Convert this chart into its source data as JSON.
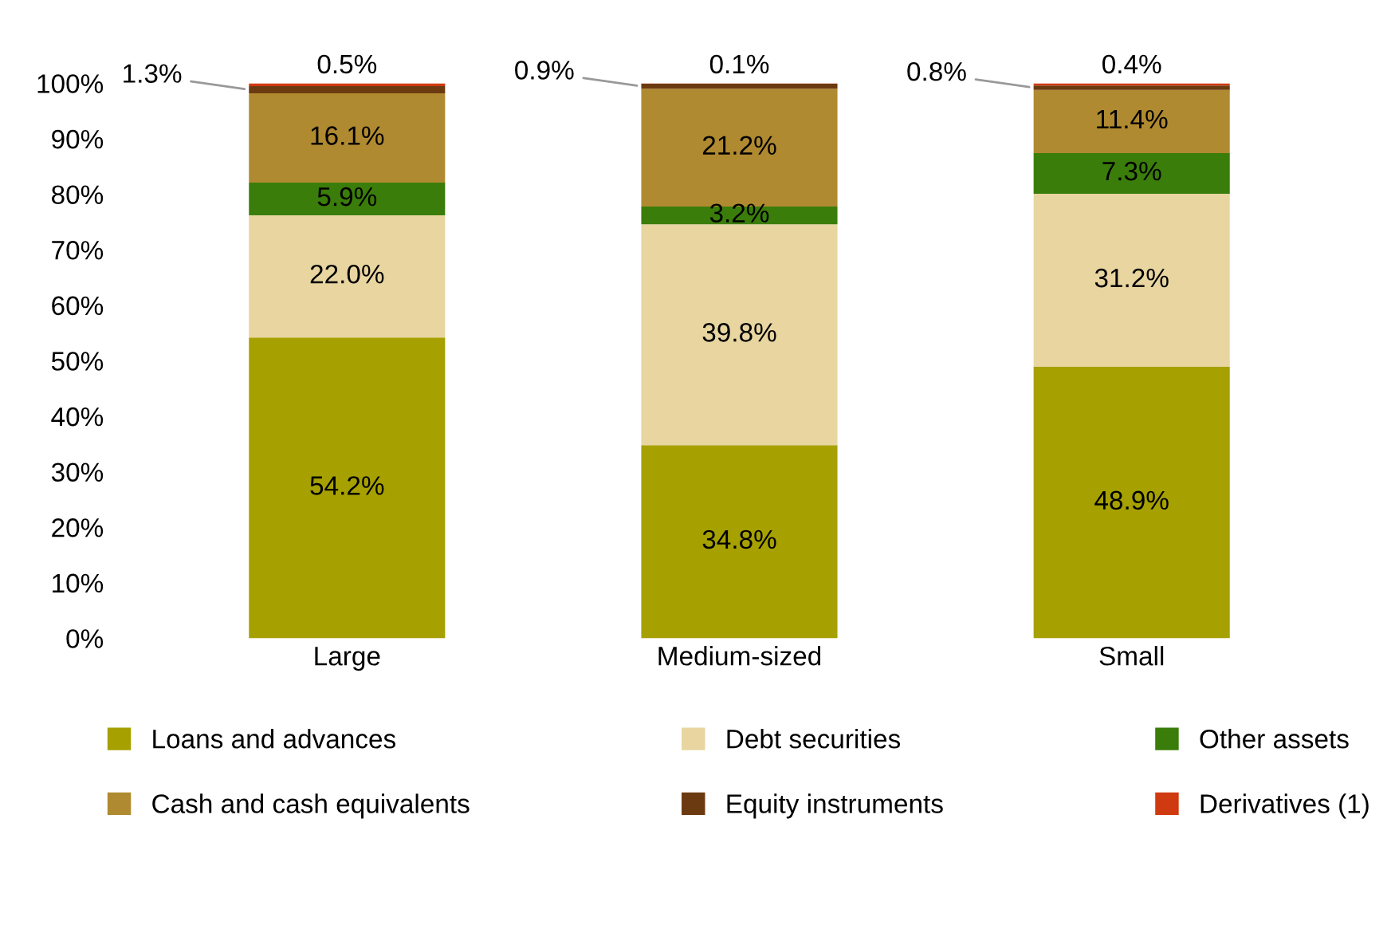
{
  "chart_data": {
    "type": "bar",
    "stacked": true,
    "categories": [
      "Large",
      "Medium-sized",
      "Small"
    ],
    "series": [
      {
        "name": "Loans and advances",
        "color": "#a6a000",
        "values": [
          54.2,
          34.8,
          48.9
        ],
        "value_labels": [
          "54.2%",
          "34.8%",
          "48.9%"
        ]
      },
      {
        "name": "Debt securities",
        "color": "#e8d5a0",
        "values": [
          22.0,
          39.8,
          31.2
        ],
        "value_labels": [
          "22.0%",
          "39.8%",
          "31.2%"
        ]
      },
      {
        "name": "Other assets",
        "color": "#3a7d0a",
        "values": [
          5.9,
          3.2,
          7.3
        ],
        "value_labels": [
          "5.9%",
          "3.2%",
          "7.3%"
        ]
      },
      {
        "name": "Cash and cash equivalents",
        "color": "#b08a30",
        "values": [
          16.1,
          21.2,
          11.4
        ],
        "value_labels": [
          "16.1%",
          "21.2%",
          "11.4%"
        ]
      },
      {
        "name": "Equity instruments",
        "color": "#6b3a10",
        "values": [
          1.3,
          0.9,
          0.8
        ],
        "value_labels": [
          "1.3%",
          "0.9%",
          "0.8%"
        ]
      },
      {
        "name": "Derivatives (1)",
        "color": "#d03a10",
        "values": [
          0.5,
          0.1,
          0.4
        ],
        "value_labels": [
          "0.5%",
          "0.1%",
          "0.4%"
        ]
      }
    ],
    "ylim": [
      0,
      100
    ],
    "yticks": [
      {
        "value": 0,
        "label": "0%"
      },
      {
        "value": 10,
        "label": "10%"
      },
      {
        "value": 20,
        "label": "20%"
      },
      {
        "value": 30,
        "label": "30%"
      },
      {
        "value": 40,
        "label": "40%"
      },
      {
        "value": 50,
        "label": "50%"
      },
      {
        "value": 60,
        "label": "60%"
      },
      {
        "value": 70,
        "label": "70%"
      },
      {
        "value": 80,
        "label": "80%"
      },
      {
        "value": 90,
        "label": "90%"
      },
      {
        "value": 100,
        "label": "100%"
      }
    ],
    "grid": false,
    "legend": "bottom"
  }
}
